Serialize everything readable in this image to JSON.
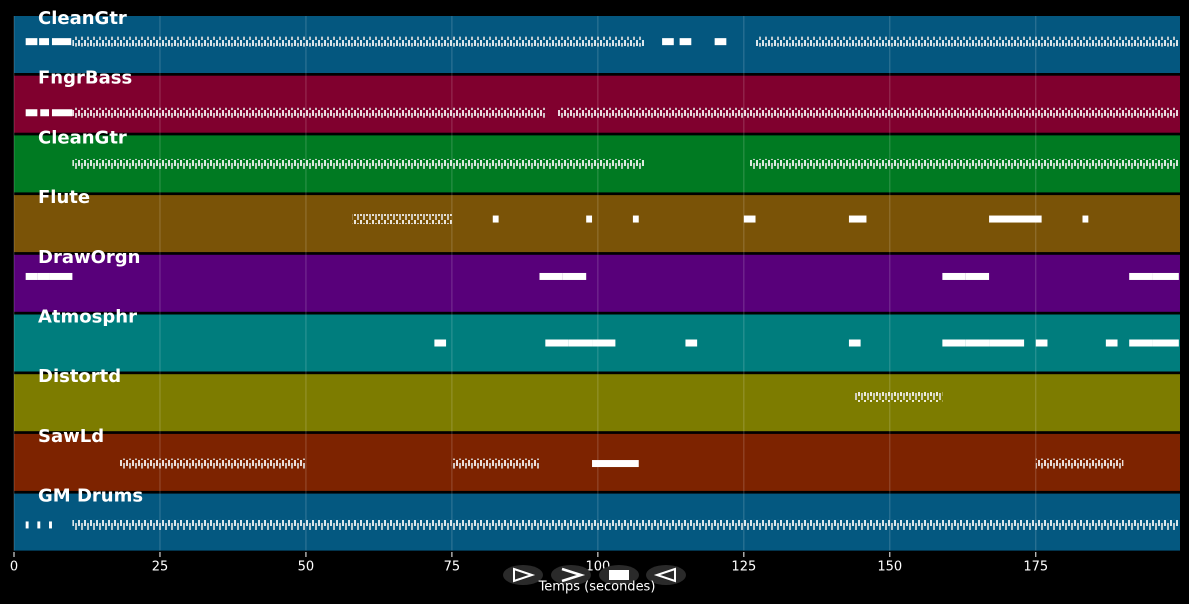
{
  "chart_data": {
    "type": "piano_roll",
    "xlabel": "Temps (secondes)",
    "xlim": [
      0,
      199.7
    ],
    "xticks": [
      0,
      25,
      50,
      75,
      100,
      125,
      150,
      175
    ],
    "grid": true,
    "tracks": [
      {
        "name": "CleanGtr",
        "color": "#04577f",
        "notes": [
          [
            2,
            4
          ],
          [
            4.3,
            6
          ],
          [
            6.5,
            9.8
          ],
          [
            10,
            108
          ],
          [
            111,
            113
          ],
          [
            114,
            116
          ],
          [
            120,
            122
          ],
          [
            127,
            199.5
          ]
        ]
      },
      {
        "name": "FngrBass",
        "color": "#80002e",
        "notes": [
          [
            2,
            4
          ],
          [
            4.5,
            6
          ],
          [
            6.5,
            10
          ],
          [
            10,
            91
          ],
          [
            93,
            199.5
          ]
        ]
      },
      {
        "name": "CleanGtr",
        "color": "#007a22",
        "notes": [
          [
            10,
            108
          ],
          [
            126,
            199.5
          ]
        ]
      },
      {
        "name": "Flute",
        "color": "#7a5307",
        "notes": [
          [
            58,
            75
          ],
          [
            82,
            83
          ],
          [
            98,
            99
          ],
          [
            106,
            107
          ],
          [
            125,
            127
          ],
          [
            143,
            146
          ],
          [
            167,
            176
          ],
          [
            183,
            184
          ]
        ]
      },
      {
        "name": "DrawOrgn",
        "color": "#58007a",
        "notes": [
          [
            2,
            4
          ],
          [
            4,
            6
          ],
          [
            6,
            10
          ],
          [
            90,
            94
          ],
          [
            94,
            98
          ],
          [
            159,
            163
          ],
          [
            163,
            167
          ],
          [
            191,
            195
          ],
          [
            195,
            199.5
          ]
        ]
      },
      {
        "name": "Atmosphr",
        "color": "#007d7d",
        "notes": [
          [
            72,
            74
          ],
          [
            91,
            95
          ],
          [
            95,
            99
          ],
          [
            99,
            103
          ],
          [
            115,
            117
          ],
          [
            143,
            145
          ],
          [
            159,
            163
          ],
          [
            163,
            167
          ],
          [
            167,
            173
          ],
          [
            175,
            177
          ],
          [
            187,
            189
          ],
          [
            191,
            195
          ],
          [
            195,
            199.5
          ]
        ]
      },
      {
        "name": "Distortd",
        "color": "#7d7c00",
        "notes": [
          [
            144,
            159
          ]
        ]
      },
      {
        "name": "SawLd",
        "color": "#7d2300",
        "notes": [
          [
            18,
            50
          ],
          [
            75,
            90
          ],
          [
            99,
            107
          ],
          [
            175,
            190
          ]
        ]
      },
      {
        "name": "GM Drums",
        "color": "#045880",
        "notes": [
          [
            2,
            2.5
          ],
          [
            4,
            4.5
          ],
          [
            6,
            6.5
          ],
          [
            10,
            199.5
          ]
        ]
      }
    ]
  }
}
